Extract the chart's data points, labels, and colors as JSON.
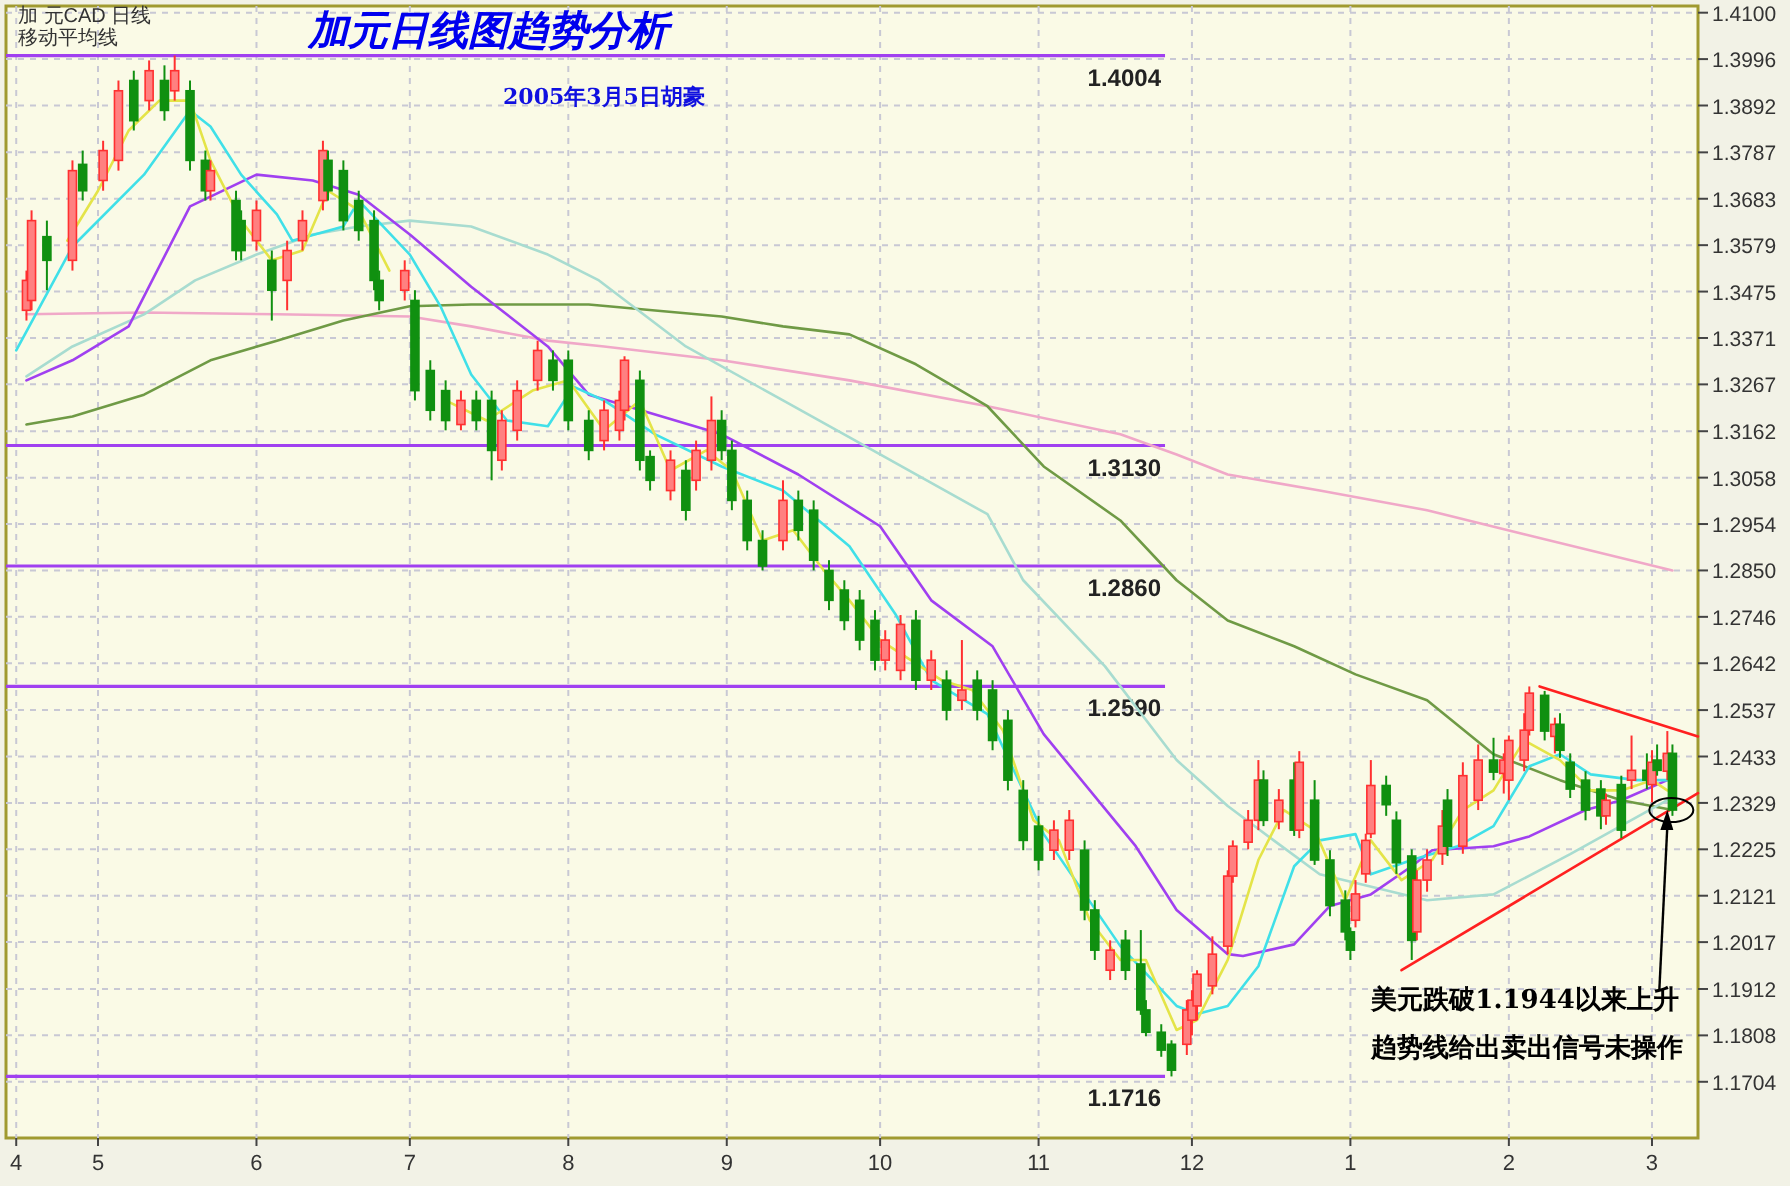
{
  "chart_data": {
    "type": "candlestick",
    "title": "加元日线图趋势分析",
    "subtitle": "2005年3月5日胡豪",
    "annotations": [
      "加 元CAD 日线",
      "移动平均线",
      {
        "text": "美元跌破1.1944以来上升趋势线给出卖出信号未操作",
        "x": "2005-03-04",
        "y": 1.2313
      }
    ],
    "xlim": [
      "2004-04-13",
      "2005-03-10"
    ],
    "ylim": [
      1.1578,
      1.4115
    ],
    "xticks": [
      {
        "value": "2004-04-15",
        "label": "4"
      },
      {
        "value": "2004-05-01",
        "label": "5"
      },
      {
        "value": "2004-06-01",
        "label": "6"
      },
      {
        "value": "2004-07-01",
        "label": "7"
      },
      {
        "value": "2004-08-01",
        "label": "8"
      },
      {
        "value": "2004-09-01",
        "label": "9"
      },
      {
        "value": "2004-10-01",
        "label": "10"
      },
      {
        "value": "2004-11-01",
        "label": "11"
      },
      {
        "value": "2004-12-01",
        "label": "12"
      },
      {
        "value": "2005-01-01",
        "label": "1"
      },
      {
        "value": "2005-02-01",
        "label": "2"
      },
      {
        "value": "2005-03-01",
        "label": "3"
      }
    ],
    "yticks": [
      {
        "value": 1.41,
        "label": "1.4100"
      },
      1.3996,
      1.3892,
      1.3787,
      1.3683,
      1.3579,
      1.3475,
      1.3371,
      1.3267,
      1.3162,
      1.3058,
      1.2954,
      {
        "value": 1.285,
        "label": "1.2850"
      },
      1.2746,
      1.2642,
      1.2537,
      1.2433,
      1.2329,
      1.2225,
      1.2121,
      1.2017,
      1.1912,
      1.1808,
      1.1704
    ],
    "grid": true,
    "ref_lines": [
      {
        "axis": "y",
        "value": 1.4004,
        "label": "1.4004",
        "color": "#a040f0"
      },
      {
        "axis": "y",
        "value": 1.313,
        "label": "1.3130",
        "color": "#a040f0"
      },
      {
        "axis": "y",
        "value": 1.286,
        "label": "1.2860",
        "color": "#a040f0"
      },
      {
        "axis": "y",
        "value": 1.259,
        "label": "1.2590",
        "color": "#a040f0"
      },
      {
        "axis": "y",
        "value": 1.1716,
        "label": "1.1716",
        "color": "#a040f0"
      }
    ],
    "x": [
      "2004-04-17",
      "2004-04-18",
      "2004-04-21",
      "2004-04-26",
      "2004-04-28",
      "2004-05-02",
      "2004-05-05",
      "2004-05-08",
      "2004-05-11",
      "2004-05-14",
      "2004-05-16",
      "2004-05-19",
      "2004-05-22",
      "2004-05-23",
      "2004-05-28",
      "2004-05-29",
      "2004-06-01",
      "2004-06-04",
      "2004-06-07",
      "2004-06-10",
      "2004-06-14",
      "2004-06-15",
      "2004-06-18",
      "2004-06-21",
      "2004-06-24",
      "2004-06-25",
      "2004-06-30",
      "2004-07-02",
      "2004-07-05",
      "2004-07-08",
      "2004-07-11",
      "2004-07-14",
      "2004-07-17",
      "2004-07-19",
      "2004-07-22",
      "2004-07-26",
      "2004-07-29",
      "2004-08-01",
      "2004-08-05",
      "2004-08-08",
      "2004-08-11",
      "2004-08-12",
      "2004-08-15",
      "2004-08-17",
      "2004-08-21",
      "2004-08-24",
      "2004-08-26",
      "2004-08-29",
      "2004-08-31",
      "2004-09-02",
      "2004-09-05",
      "2004-09-08",
      "2004-09-12",
      "2004-09-15",
      "2004-09-18",
      "2004-09-21",
      "2004-09-24",
      "2004-09-27",
      "2004-09-30",
      "2004-10-02",
      "2004-10-05",
      "2004-10-08",
      "2004-10-11",
      "2004-10-14",
      "2004-10-17",
      "2004-10-20",
      "2004-10-23",
      "2004-10-26",
      "2004-10-29",
      "2004-11-01",
      "2004-11-04",
      "2004-11-07",
      "2004-11-10",
      "2004-11-12",
      "2004-11-15",
      "2004-11-18",
      "2004-11-21",
      "2004-11-22",
      "2004-11-25",
      "2004-11-27",
      "2004-11-30",
      "2004-12-01",
      "2004-12-02",
      "2004-12-05",
      "2004-12-08",
      "2004-12-09",
      "2004-12-12",
      "2004-12-14",
      "2004-12-15",
      "2004-12-18",
      "2004-12-21",
      "2004-12-22",
      "2004-12-25",
      "2004-12-28",
      "2004-12-31",
      "2005-01-01",
      "2005-01-02",
      "2005-01-04",
      "2005-01-05",
      "2005-01-08",
      "2005-01-10",
      "2005-01-13",
      "2005-01-14",
      "2005-01-16",
      "2005-01-19",
      "2005-01-20",
      "2005-01-23",
      "2005-01-26",
      "2005-01-29",
      "2005-01-31",
      "2005-02-01",
      "2005-02-04",
      "2005-02-05",
      "2005-02-08",
      "2005-02-10",
      "2005-02-11",
      "2005-02-13",
      "2005-02-16",
      "2005-02-19",
      "2005-02-20",
      "2005-02-23",
      "2005-02-25",
      "2005-02-28",
      "2005-03-01",
      "2005-03-02",
      "2005-03-04",
      "2005-03-05"
    ],
    "ohlc": [
      [
        1.3433,
        1.3522,
        1.341,
        1.35
      ],
      [
        1.3455,
        1.3657,
        1.3433,
        1.3634
      ],
      [
        1.3598,
        1.3634,
        1.3478,
        1.3545
      ],
      [
        1.3545,
        1.3769,
        1.3522,
        1.3746
      ],
      [
        1.376,
        1.3791,
        1.3679,
        1.3701
      ],
      [
        1.3724,
        1.3813,
        1.3701,
        1.3791
      ],
      [
        1.3769,
        1.3948,
        1.3746,
        1.3925
      ],
      [
        1.3948,
        1.397,
        1.3836,
        1.3858
      ],
      [
        1.3903,
        1.3993,
        1.3881,
        1.397
      ],
      [
        1.3948,
        1.3982,
        1.3858,
        1.3881
      ],
      [
        1.3925,
        1.4004,
        1.3903,
        1.397
      ],
      [
        1.3925,
        1.3948,
        1.3746,
        1.3769
      ],
      [
        1.3769,
        1.3791,
        1.3679,
        1.3701
      ],
      [
        1.3701,
        1.3769,
        1.3679,
        1.3746
      ],
      [
        1.3679,
        1.3701,
        1.3545,
        1.3567
      ],
      [
        1.3634,
        1.3657,
        1.3545,
        1.3567
      ],
      [
        1.3589,
        1.3679,
        1.3567,
        1.3657
      ],
      [
        1.3545,
        1.3567,
        1.341,
        1.3478
      ],
      [
        1.35,
        1.3589,
        1.3433,
        1.3567
      ],
      [
        1.3589,
        1.3657,
        1.3567,
        1.3634
      ],
      [
        1.3679,
        1.3813,
        1.3657,
        1.3791
      ],
      [
        1.3769,
        1.3791,
        1.3679,
        1.3701
      ],
      [
        1.3746,
        1.3769,
        1.3612,
        1.3634
      ],
      [
        1.3679,
        1.3701,
        1.3589,
        1.3612
      ],
      [
        1.3634,
        1.3657,
        1.3478,
        1.35
      ],
      [
        1.35,
        1.3522,
        1.3433,
        1.3455
      ],
      [
        1.3478,
        1.3545,
        1.3455,
        1.3522
      ],
      [
        1.3455,
        1.3478,
        1.3231,
        1.3253
      ],
      [
        1.3298,
        1.3321,
        1.3186,
        1.3209
      ],
      [
        1.3253,
        1.3276,
        1.3164,
        1.3186
      ],
      [
        1.3177,
        1.3253,
        1.3164,
        1.3231
      ],
      [
        1.3231,
        1.3253,
        1.3164,
        1.3186
      ],
      [
        1.3231,
        1.3253,
        1.3052,
        1.3119
      ],
      [
        1.3097,
        1.3209,
        1.3074,
        1.3186
      ],
      [
        1.3164,
        1.3276,
        1.3141,
        1.3253
      ],
      [
        1.3276,
        1.3365,
        1.3253,
        1.3343
      ],
      [
        1.3321,
        1.3343,
        1.3253,
        1.3276
      ],
      [
        1.3321,
        1.3343,
        1.3164,
        1.3186
      ],
      [
        1.3186,
        1.3209,
        1.3097,
        1.3119
      ],
      [
        1.3141,
        1.3231,
        1.3119,
        1.3209
      ],
      [
        1.3164,
        1.3253,
        1.3141,
        1.3231
      ],
      [
        1.3209,
        1.333,
        1.3186,
        1.3321
      ],
      [
        1.3276,
        1.3298,
        1.3074,
        1.3097
      ],
      [
        1.3105,
        1.3119,
        1.3029,
        1.3052
      ],
      [
        1.3029,
        1.3119,
        1.3007,
        1.3097
      ],
      [
        1.3074,
        1.3097,
        1.2962,
        1.2985
      ],
      [
        1.3052,
        1.3141,
        1.3029,
        1.3119
      ],
      [
        1.3097,
        1.324,
        1.3074,
        1.3186
      ],
      [
        1.3186,
        1.3209,
        1.3097,
        1.3119
      ],
      [
        1.3119,
        1.3141,
        1.2985,
        1.3007
      ],
      [
        1.3007,
        1.3029,
        1.2895,
        1.2917
      ],
      [
        1.2917,
        1.294,
        1.285,
        1.286
      ],
      [
        1.2917,
        1.3052,
        1.2895,
        1.3007
      ],
      [
        1.3007,
        1.3029,
        1.2917,
        1.294
      ],
      [
        1.2985,
        1.3007,
        1.285,
        1.2873
      ],
      [
        1.285,
        1.2873,
        1.2761,
        1.2783
      ],
      [
        1.2806,
        1.2828,
        1.2716,
        1.2738
      ],
      [
        1.2783,
        1.2806,
        1.2671,
        1.2694
      ],
      [
        1.2738,
        1.2761,
        1.2626,
        1.2649
      ],
      [
        1.2649,
        1.2716,
        1.2626,
        1.2694
      ],
      [
        1.2626,
        1.275,
        1.2604,
        1.2729
      ],
      [
        1.2738,
        1.2761,
        1.2582,
        1.2604
      ],
      [
        1.2604,
        1.2671,
        1.2582,
        1.2649
      ],
      [
        1.2604,
        1.2626,
        1.2514,
        1.2537
      ],
      [
        1.2559,
        1.2694,
        1.2537,
        1.2582
      ],
      [
        1.2604,
        1.2626,
        1.2514,
        1.2537
      ],
      [
        1.2582,
        1.2604,
        1.2447,
        1.2469
      ],
      [
        1.2514,
        1.2537,
        1.2357,
        1.238
      ],
      [
        1.2357,
        1.238,
        1.2223,
        1.2245
      ],
      [
        1.2277,
        1.23,
        1.2178,
        1.2201
      ],
      [
        1.2223,
        1.229,
        1.2201,
        1.2268
      ],
      [
        1.2223,
        1.2313,
        1.2201,
        1.229
      ],
      [
        1.2223,
        1.2245,
        1.2066,
        1.2089
      ],
      [
        1.2089,
        1.2111,
        1.1977,
        1.1999
      ],
      [
        1.1954,
        1.2021,
        1.1932,
        1.1999
      ],
      [
        1.2021,
        1.2044,
        1.1932,
        1.1954
      ],
      [
        1.1968,
        1.2044,
        1.1854,
        1.1865
      ],
      [
        1.1865,
        1.1887,
        1.1806,
        1.1815
      ],
      [
        1.1815,
        1.1833,
        1.176,
        1.1775
      ],
      [
        1.1788,
        1.1797,
        1.1716,
        1.173
      ],
      [
        1.1788,
        1.1887,
        1.1764,
        1.1865
      ],
      [
        1.1842,
        1.1909,
        1.1808,
        1.1887
      ],
      [
        1.1874,
        1.1954,
        1.1842,
        1.1945
      ],
      [
        1.1919,
        1.203,
        1.19,
        1.199
      ],
      [
        1.2008,
        1.2178,
        1.199,
        1.2165
      ],
      [
        1.2165,
        1.2245,
        1.215,
        1.2232
      ],
      [
        1.2241,
        1.2313,
        1.2225,
        1.229
      ],
      [
        1.229,
        1.2425,
        1.2268,
        1.238
      ],
      [
        1.238,
        1.2402,
        1.2277,
        1.229
      ],
      [
        1.2287,
        1.236,
        1.227,
        1.2335
      ],
      [
        1.238,
        1.242,
        1.2255,
        1.2268
      ],
      [
        1.2268,
        1.2445,
        1.225,
        1.242
      ],
      [
        1.2335,
        1.238,
        1.219,
        1.2201
      ],
      [
        1.2201,
        1.2223,
        1.2075,
        1.2099
      ],
      [
        1.2111,
        1.2133,
        1.2021,
        1.204
      ],
      [
        1.204,
        1.205,
        1.1977,
        1.1999
      ],
      [
        1.2066,
        1.2156,
        1.205,
        1.2125
      ],
      [
        1.217,
        1.226,
        1.215,
        1.2245
      ],
      [
        1.226,
        1.2425,
        1.225,
        1.2368
      ],
      [
        1.2368,
        1.239,
        1.23,
        1.2325
      ],
      [
        1.229,
        1.231,
        1.217,
        1.2195
      ],
      [
        1.221,
        1.2225,
        1.1977,
        1.2021
      ],
      [
        1.204,
        1.2178,
        1.2021,
        1.2156
      ],
      [
        1.2156,
        1.2225,
        1.213,
        1.2201
      ],
      [
        1.2215,
        1.2313,
        1.219,
        1.2277
      ],
      [
        1.2335,
        1.236,
        1.221,
        1.2232
      ],
      [
        1.2232,
        1.242,
        1.2215,
        1.239
      ],
      [
        1.2335,
        1.246,
        1.2313,
        1.2425
      ],
      [
        1.2425,
        1.2475,
        1.238,
        1.2398
      ],
      [
        1.2395,
        1.244,
        1.235,
        1.2425
      ],
      [
        1.238,
        1.248,
        1.2335,
        1.2469
      ],
      [
        1.2425,
        1.253,
        1.24,
        1.2492
      ],
      [
        1.2492,
        1.259,
        1.248,
        1.2575
      ],
      [
        1.257,
        1.258,
        1.2469,
        1.249
      ],
      [
        1.2478,
        1.252,
        1.244,
        1.2505
      ],
      [
        1.2505,
        1.253,
        1.243,
        1.2447
      ],
      [
        1.242,
        1.244,
        1.234,
        1.236
      ],
      [
        1.238,
        1.24,
        1.229,
        1.2313
      ],
      [
        1.236,
        1.238,
        1.227,
        1.23
      ],
      [
        1.23,
        1.235,
        1.228,
        1.2335
      ],
      [
        1.237,
        1.239,
        1.225,
        1.2268
      ],
      [
        1.238,
        1.248,
        1.236,
        1.2402
      ],
      [
        1.2402,
        1.244,
        1.236,
        1.238
      ],
      [
        1.237,
        1.2447,
        1.233,
        1.242
      ],
      [
        1.2425,
        1.246,
        1.239,
        1.2402
      ],
      [
        1.24,
        1.249,
        1.238,
        1.244
      ],
      [
        1.244,
        1.246,
        1.23,
        1.2313
      ]
    ],
    "series": [
      {
        "type": "line",
        "color": "#f0a8c8",
        "x": [
          "2004-04-17",
          "2004-05-10",
          "2004-06-05",
          "2004-07-01",
          "2004-07-13",
          "2004-07-28",
          "2004-08-08",
          "2004-08-31",
          "2004-09-25",
          "2004-10-22",
          "2004-11-17",
          "2004-11-28",
          "2004-12-08",
          "2004-12-26",
          "2005-01-16",
          "2005-02-04",
          "2005-03-05"
        ],
        "values": [
          1.3424,
          1.3428,
          1.3424,
          1.3419,
          1.3397,
          1.3365,
          1.3352,
          1.3321,
          1.3276,
          1.3218,
          1.3155,
          1.311,
          1.3065,
          1.3029,
          1.2985,
          1.2931,
          1.285
        ]
      },
      {
        "type": "line",
        "color": "#6f9a45",
        "x": [
          "2004-04-17",
          "2004-04-26",
          "2004-05-10",
          "2004-05-23",
          "2004-06-05",
          "2004-06-18",
          "2004-07-01",
          "2004-07-13",
          "2004-08-05",
          "2004-08-31",
          "2004-09-12",
          "2004-09-25",
          "2004-10-08",
          "2004-10-22",
          "2004-11-02",
          "2004-11-17",
          "2004-11-28",
          "2004-12-08",
          "2004-12-21",
          "2005-01-02",
          "2005-01-16",
          "2005-01-29",
          "2005-02-11",
          "2005-02-23",
          "2005-03-05"
        ],
        "values": [
          1.3177,
          1.3195,
          1.3244,
          1.3321,
          1.3365,
          1.341,
          1.3442,
          1.3446,
          1.3446,
          1.3419,
          1.3397,
          1.3379,
          1.3312,
          1.3218,
          1.3083,
          1.2962,
          1.2828,
          1.2738,
          1.268,
          1.2617,
          1.2559,
          1.2438,
          1.238,
          1.2335,
          1.2313
        ]
      },
      {
        "type": "line",
        "color": "#a8dcd0",
        "x": [
          "2004-04-17",
          "2004-04-26",
          "2004-05-10",
          "2004-05-20",
          "2004-06-01",
          "2004-06-12",
          "2004-06-21",
          "2004-07-01",
          "2004-07-13",
          "2004-07-28",
          "2004-08-07",
          "2004-08-24",
          "2004-09-12",
          "2004-10-01",
          "2004-10-22",
          "2004-10-29",
          "2004-11-14",
          "2004-11-28",
          "2004-12-08",
          "2004-12-17",
          "2004-12-26",
          "2005-01-16",
          "2005-01-29",
          "2005-02-13",
          "2005-03-04"
        ],
        "values": [
          1.3285,
          1.3352,
          1.3424,
          1.35,
          1.3558,
          1.3603,
          1.3621,
          1.3634,
          1.3621,
          1.3558,
          1.35,
          1.3352,
          1.3231,
          1.311,
          1.2976,
          1.2828,
          1.2635,
          1.2425,
          1.2322,
          1.2245,
          1.2169,
          1.2111,
          1.2124,
          1.2214,
          1.2335
        ]
      },
      {
        "type": "line",
        "color": "#a040f0",
        "x": [
          "2004-04-17",
          "2004-04-26",
          "2004-05-07",
          "2004-05-19",
          "2004-06-01",
          "2004-06-12",
          "2004-06-21",
          "2004-07-01",
          "2004-07-13",
          "2004-07-28",
          "2004-08-05",
          "2004-08-31",
          "2004-09-15",
          "2004-10-01",
          "2004-10-11",
          "2004-10-23",
          "2004-11-02",
          "2004-11-20",
          "2004-11-28",
          "2004-12-08",
          "2004-12-11",
          "2004-12-21",
          "2004-12-28",
          "2005-01-05",
          "2005-01-13",
          "2005-01-17",
          "2005-01-29",
          "2005-02-05",
          "2005-02-16",
          "2005-02-23",
          "2005-03-04"
        ],
        "values": [
          1.3276,
          1.3321,
          1.3397,
          1.3666,
          1.3737,
          1.3724,
          1.3692,
          1.3603,
          1.3486,
          1.3352,
          1.3244,
          1.3155,
          1.3065,
          1.2949,
          1.2783,
          1.268,
          1.2483,
          1.2232,
          1.2089,
          1.199,
          1.1986,
          1.2012,
          1.2098,
          1.2124,
          1.2187,
          1.2223,
          1.2232,
          1.2254,
          1.2313,
          1.2335,
          1.238
        ]
      },
      {
        "type": "line",
        "color": "#40e0e8",
        "x": [
          "2004-04-15",
          "2004-04-26",
          "2004-05-10",
          "2004-05-19",
          "2004-05-23",
          "2004-05-29",
          "2004-06-05",
          "2004-06-08",
          "2004-06-18",
          "2004-06-21",
          "2004-07-01",
          "2004-07-07",
          "2004-07-13",
          "2004-07-20",
          "2004-07-28",
          "2004-08-02",
          "2004-08-08",
          "2004-08-18",
          "2004-08-31",
          "2004-09-12",
          "2004-09-25",
          "2004-10-04",
          "2004-10-11",
          "2004-10-22",
          "2004-11-02",
          "2004-11-17",
          "2004-11-28",
          "2004-12-02",
          "2004-12-08",
          "2004-12-14",
          "2004-12-21",
          "2004-12-26",
          "2005-01-02",
          "2005-01-05",
          "2005-01-13",
          "2005-01-22",
          "2005-01-29",
          "2005-02-05",
          "2005-02-11",
          "2005-02-17",
          "2005-02-26",
          "2005-03-05"
        ],
        "values": [
          1.3343,
          1.3576,
          1.3737,
          1.3881,
          1.3845,
          1.3737,
          1.3648,
          1.3589,
          1.3621,
          1.3679,
          1.3558,
          1.3442,
          1.3289,
          1.3186,
          1.3173,
          1.3262,
          1.3231,
          1.3155,
          1.3083,
          1.3029,
          1.2904,
          1.2752,
          1.2604,
          1.2528,
          1.2259,
          1.2008,
          1.1874,
          1.1856,
          1.1874,
          1.1963,
          1.2187,
          1.2245,
          1.2259,
          1.2169,
          1.2201,
          1.2232,
          1.2277,
          1.2411,
          1.2438,
          1.2393,
          1.238,
          1.238
        ]
      },
      {
        "type": "line",
        "color": "#e4e448",
        "x": [
          "2004-04-25",
          "2004-05-01",
          "2004-05-07",
          "2004-05-13",
          "2004-05-19",
          "2004-05-23",
          "2004-05-29",
          "2004-06-04",
          "2004-06-10",
          "2004-06-15",
          "2004-06-21",
          "2004-06-27",
          "2004-07-02",
          "2004-07-08",
          "2004-07-16",
          "2004-07-25",
          "2004-08-01",
          "2004-08-08",
          "2004-08-15",
          "2004-08-21",
          "2004-08-28",
          "2004-09-02",
          "2004-09-08",
          "2004-09-14",
          "2004-09-20",
          "2004-09-25",
          "2004-10-01",
          "2004-10-07",
          "2004-10-13",
          "2004-10-19",
          "2004-10-25",
          "2004-10-31",
          "2004-11-05",
          "2004-11-11",
          "2004-11-17",
          "2004-11-22",
          "2004-11-28",
          "2004-12-02",
          "2004-12-08",
          "2004-12-14",
          "2004-12-19",
          "2004-12-25",
          "2004-12-31",
          "2005-01-05",
          "2005-01-11",
          "2005-01-17",
          "2005-01-23",
          "2005-01-29",
          "2005-02-04",
          "2005-02-11",
          "2005-02-17",
          "2005-02-23",
          "2005-03-01",
          "2005-03-04"
        ],
        "values": [
          1.3589,
          1.3701,
          1.3836,
          1.3903,
          1.3903,
          1.3769,
          1.3634,
          1.3545,
          1.3567,
          1.3701,
          1.3657,
          1.3522,
          null,
          1.3231,
          1.3186,
          1.3253,
          1.3276,
          1.3164,
          1.3231,
          1.3074,
          1.3119,
          1.3074,
          1.2917,
          1.294,
          1.285,
          1.2783,
          1.2694,
          1.2649,
          1.2604,
          1.2582,
          1.2492,
          1.229,
          1.2245,
          1.2066,
          1.1977,
          1.1977,
          1.182,
          1.1842,
          1.1977,
          1.2201,
          1.2313,
          1.2268,
          1.2111,
          1.2245,
          1.2156,
          1.2201,
          1.2313,
          1.2357,
          1.2469,
          1.2425,
          1.2357,
          1.2357,
          1.238,
          1.2357
        ]
      },
      {
        "type": "line",
        "color": "#ff2020",
        "line_style": "solid",
        "x": [
          "2005-01-11",
          "2005-03-10"
        ],
        "values": [
          1.1954,
          1.2351
        ]
      },
      {
        "type": "line",
        "color": "#ff2020",
        "line_style": "solid",
        "x": [
          "2005-02-07",
          "2005-03-10"
        ],
        "values": [
          1.259,
          1.2478
        ]
      }
    ]
  }
}
